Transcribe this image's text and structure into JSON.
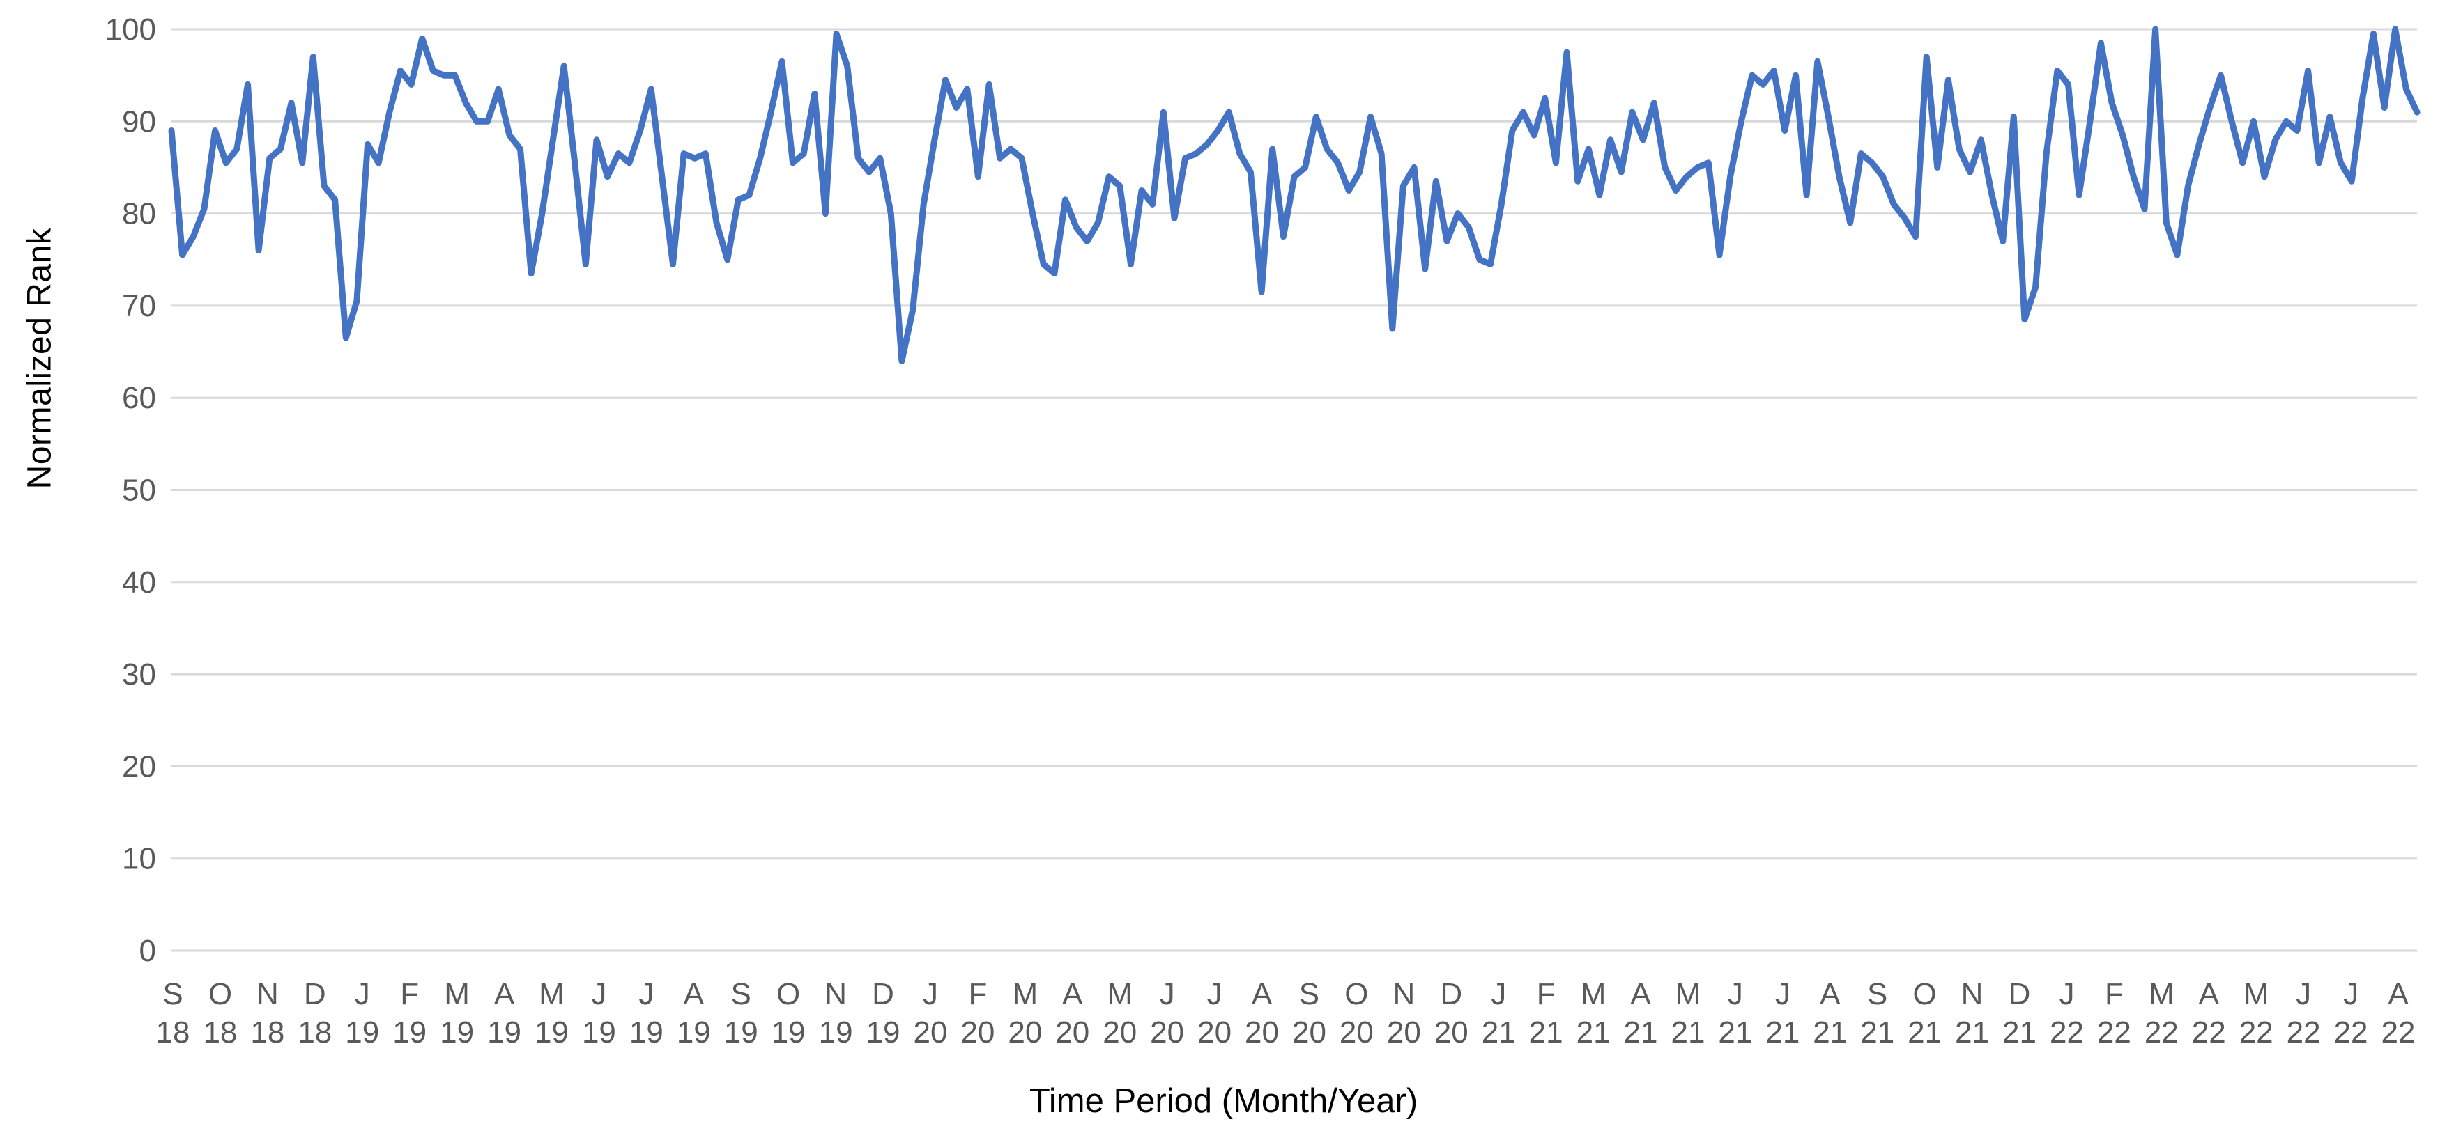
{
  "chart_data": {
    "type": "line",
    "title": "",
    "xlabel": "Time Period (Month/Year)",
    "ylabel": "Normalized Rank",
    "ylim": [
      0,
      100
    ],
    "yticks": [
      0,
      10,
      20,
      30,
      40,
      50,
      60,
      70,
      80,
      90,
      100
    ],
    "grid": true,
    "legend_position": "none",
    "gridline_color": "#d9d9d9",
    "tick_label_color": "#595959",
    "axis_title_color": "#000000",
    "x_tick_labels": [
      {
        "month": "S",
        "year": "18"
      },
      {
        "month": "O",
        "year": "18"
      },
      {
        "month": "N",
        "year": "18"
      },
      {
        "month": "D",
        "year": "18"
      },
      {
        "month": "J",
        "year": "19"
      },
      {
        "month": "F",
        "year": "19"
      },
      {
        "month": "M",
        "year": "19"
      },
      {
        "month": "A",
        "year": "19"
      },
      {
        "month": "M",
        "year": "19"
      },
      {
        "month": "J",
        "year": "19"
      },
      {
        "month": "J",
        "year": "19"
      },
      {
        "month": "A",
        "year": "19"
      },
      {
        "month": "S",
        "year": "19"
      },
      {
        "month": "O",
        "year": "19"
      },
      {
        "month": "N",
        "year": "19"
      },
      {
        "month": "D",
        "year": "19"
      },
      {
        "month": "J",
        "year": "20"
      },
      {
        "month": "F",
        "year": "20"
      },
      {
        "month": "M",
        "year": "20"
      },
      {
        "month": "A",
        "year": "20"
      },
      {
        "month": "M",
        "year": "20"
      },
      {
        "month": "J",
        "year": "20"
      },
      {
        "month": "J",
        "year": "20"
      },
      {
        "month": "A",
        "year": "20"
      },
      {
        "month": "S",
        "year": "20"
      },
      {
        "month": "O",
        "year": "20"
      },
      {
        "month": "N",
        "year": "20"
      },
      {
        "month": "D",
        "year": "20"
      },
      {
        "month": "J",
        "year": "21"
      },
      {
        "month": "F",
        "year": "21"
      },
      {
        "month": "M",
        "year": "21"
      },
      {
        "month": "A",
        "year": "21"
      },
      {
        "month": "M",
        "year": "21"
      },
      {
        "month": "J",
        "year": "21"
      },
      {
        "month": "J",
        "year": "21"
      },
      {
        "month": "A",
        "year": "21"
      },
      {
        "month": "S",
        "year": "21"
      },
      {
        "month": "O",
        "year": "21"
      },
      {
        "month": "N",
        "year": "21"
      },
      {
        "month": "D",
        "year": "21"
      },
      {
        "month": "J",
        "year": "22"
      },
      {
        "month": "F",
        "year": "22"
      },
      {
        "month": "M",
        "year": "22"
      },
      {
        "month": "A",
        "year": "22"
      },
      {
        "month": "M",
        "year": "22"
      },
      {
        "month": "J",
        "year": "22"
      },
      {
        "month": "J",
        "year": "22"
      },
      {
        "month": "A",
        "year": "22"
      }
    ],
    "series": [
      {
        "name": "Normalized Rank",
        "color": "#4472C4",
        "frequency": "weekly",
        "values": [
          89,
          75.5,
          77.5,
          80.5,
          89,
          85.5,
          87,
          94,
          76,
          86,
          87,
          92,
          85.5,
          97,
          83,
          81.5,
          66.5,
          70.5,
          87.5,
          85.5,
          91,
          95.5,
          94,
          99,
          95.5,
          95,
          95,
          92,
          90,
          90,
          93.5,
          88.5,
          87,
          73.5,
          80,
          88,
          96,
          85.5,
          74.5,
          88,
          84,
          86.5,
          85.5,
          89,
          93.5,
          84,
          74.5,
          86.5,
          86,
          86.5,
          79,
          75,
          81.5,
          82,
          86,
          91,
          96.5,
          85.5,
          86.5,
          93,
          80,
          99.5,
          96,
          86,
          84.5,
          86,
          80,
          64,
          69.5,
          81,
          88,
          94.5,
          91.5,
          93.5,
          84,
          94,
          86,
          87,
          86,
          80,
          74.5,
          73.5,
          81.5,
          78.5,
          77,
          79,
          84,
          83,
          74.5,
          82.5,
          81,
          91,
          79.5,
          86,
          86.5,
          87.5,
          89,
          91,
          86.5,
          84.5,
          71.5,
          87,
          77.5,
          84,
          85,
          90.5,
          87,
          85.5,
          82.5,
          84.5,
          90.5,
          86.5,
          67.5,
          83,
          85,
          74,
          83.5,
          77,
          80,
          78.5,
          75,
          74.5,
          81,
          89,
          91,
          88.5,
          92.5,
          85.5,
          97.5,
          83.5,
          87,
          82,
          88,
          84.5,
          91,
          88,
          92,
          85,
          82.5,
          84,
          85,
          85.5,
          75.5,
          84,
          90,
          95,
          94,
          95.5,
          89,
          95,
          82,
          96.5,
          90.5,
          84,
          79,
          86.5,
          85.5,
          84,
          81,
          79.5,
          77.5,
          97,
          85,
          94.5,
          87,
          84.5,
          88,
          82,
          77,
          90.5,
          68.5,
          72,
          86.5,
          95.5,
          94,
          82,
          90,
          98.5,
          92,
          88.5,
          84,
          80.5,
          100,
          79,
          75.5,
          83,
          87.5,
          91.5,
          95,
          90,
          85.5,
          90,
          84,
          88,
          90,
          89,
          95.5,
          85.5,
          90.5,
          85.5,
          83.5,
          92.5,
          99.5,
          91.5,
          100,
          93.5,
          91
        ]
      }
    ]
  }
}
